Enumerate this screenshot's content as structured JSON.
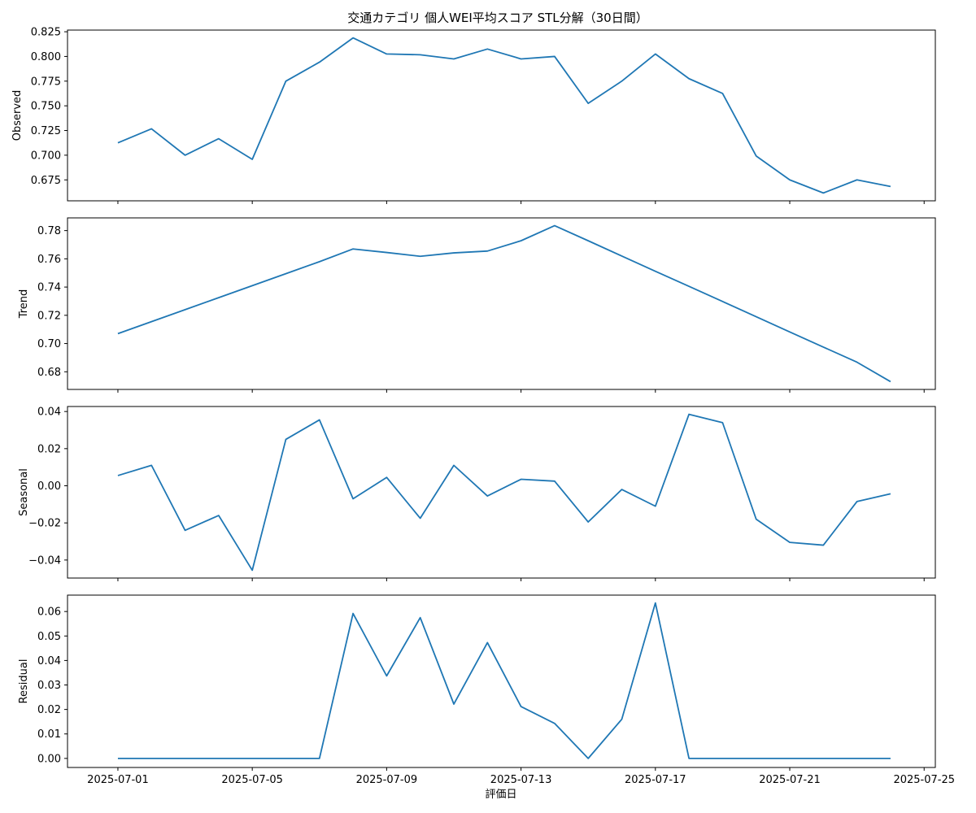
{
  "figure": {
    "title": "交通カテゴリ 個人WEI平均スコア STL分解（30日間）",
    "xlabel": "評価日",
    "line_color": "#1f77b4"
  },
  "chart_data": [
    {
      "type": "line",
      "ylabel": "Observed",
      "x": [
        "2025-07-01",
        "2025-07-02",
        "2025-07-03",
        "2025-07-04",
        "2025-07-05",
        "2025-07-06",
        "2025-07-07",
        "2025-07-08",
        "2025-07-09",
        "2025-07-10",
        "2025-07-11",
        "2025-07-12",
        "2025-07-13",
        "2025-07-14",
        "2025-07-15",
        "2025-07-16",
        "2025-07-17",
        "2025-07-18",
        "2025-07-19",
        "2025-07-20",
        "2025-07-21",
        "2025-07-22",
        "2025-07-23",
        "2025-07-24"
      ],
      "values": [
        0.7125,
        0.7267,
        0.7,
        0.7167,
        0.6958,
        0.775,
        0.7942,
        0.8188,
        0.8025,
        0.8017,
        0.7975,
        0.8075,
        0.7975,
        0.8,
        0.7525,
        0.775,
        0.8025,
        0.7775,
        0.7625,
        0.6992,
        0.675,
        0.6617,
        0.675,
        0.6683
      ],
      "ylim": [
        0.6538,
        0.8267
      ],
      "yticks": [
        0.675,
        0.7,
        0.725,
        0.75,
        0.775,
        0.8,
        0.825
      ],
      "ytick_labels": [
        "0.675",
        "0.700",
        "0.725",
        "0.750",
        "0.775",
        "0.800",
        "0.825"
      ]
    },
    {
      "type": "line",
      "ylabel": "Trend",
      "x": [
        "2025-07-01",
        "2025-07-02",
        "2025-07-03",
        "2025-07-04",
        "2025-07-05",
        "2025-07-06",
        "2025-07-07",
        "2025-07-08",
        "2025-07-09",
        "2025-07-10",
        "2025-07-11",
        "2025-07-12",
        "2025-07-13",
        "2025-07-14",
        "2025-07-15",
        "2025-07-16",
        "2025-07-17",
        "2025-07-18",
        "2025-07-19",
        "2025-07-20",
        "2025-07-21",
        "2025-07-22",
        "2025-07-23",
        "2025-07-24"
      ],
      "values": [
        0.707,
        0.7155,
        0.724,
        0.7325,
        0.741,
        0.7495,
        0.758,
        0.767,
        0.7645,
        0.7618,
        0.7642,
        0.7655,
        0.7728,
        0.7835,
        0.7728,
        0.762,
        0.7512,
        0.7405,
        0.7298,
        0.719,
        0.7082,
        0.6975,
        0.6868,
        0.673
      ],
      "ylim": [
        0.6675,
        0.789
      ],
      "yticks": [
        0.68,
        0.7,
        0.72,
        0.74,
        0.76,
        0.78
      ],
      "ytick_labels": [
        "0.68",
        "0.70",
        "0.72",
        "0.74",
        "0.76",
        "0.78"
      ]
    },
    {
      "type": "line",
      "ylabel": "Seasonal",
      "x": [
        "2025-07-01",
        "2025-07-02",
        "2025-07-03",
        "2025-07-04",
        "2025-07-05",
        "2025-07-06",
        "2025-07-07",
        "2025-07-08",
        "2025-07-09",
        "2025-07-10",
        "2025-07-11",
        "2025-07-12",
        "2025-07-13",
        "2025-07-14",
        "2025-07-15",
        "2025-07-16",
        "2025-07-17",
        "2025-07-18",
        "2025-07-19",
        "2025-07-20",
        "2025-07-21",
        "2025-07-22",
        "2025-07-23",
        "2025-07-24"
      ],
      "values": [
        0.0055,
        0.011,
        -0.024,
        -0.016,
        -0.0455,
        0.025,
        0.0355,
        -0.007,
        0.0045,
        -0.0175,
        0.011,
        -0.0055,
        0.0035,
        0.0025,
        -0.0195,
        -0.002,
        -0.011,
        0.0385,
        0.034,
        -0.018,
        -0.0305,
        -0.032,
        -0.0085,
        -0.0043
      ],
      "ylim": [
        -0.0497,
        0.0427
      ],
      "yticks": [
        -0.04,
        -0.02,
        0.0,
        0.02,
        0.04
      ],
      "ytick_labels": [
        "−0.04",
        "−0.02",
        "0.00",
        "0.02",
        "0.04"
      ]
    },
    {
      "type": "line",
      "ylabel": "Residual",
      "x": [
        "2025-07-01",
        "2025-07-02",
        "2025-07-03",
        "2025-07-04",
        "2025-07-05",
        "2025-07-06",
        "2025-07-07",
        "2025-07-08",
        "2025-07-09",
        "2025-07-10",
        "2025-07-11",
        "2025-07-12",
        "2025-07-13",
        "2025-07-14",
        "2025-07-15",
        "2025-07-16",
        "2025-07-17",
        "2025-07-18",
        "2025-07-19",
        "2025-07-20",
        "2025-07-21",
        "2025-07-22",
        "2025-07-23",
        "2025-07-24"
      ],
      "values": [
        0,
        0,
        0,
        0,
        0,
        0,
        0,
        0.0592,
        0.0337,
        0.0575,
        0.0222,
        0.0473,
        0.0212,
        0.0143,
        0.0,
        0.016,
        0.0635,
        0,
        0,
        0,
        0,
        0,
        0,
        0
      ],
      "ylim": [
        -0.0037,
        0.0667
      ],
      "yticks": [
        0.0,
        0.01,
        0.02,
        0.03,
        0.04,
        0.05,
        0.06
      ],
      "ytick_labels": [
        "0.00",
        "0.01",
        "0.02",
        "0.03",
        "0.04",
        "0.05",
        "0.06"
      ],
      "xticks": [
        "2025-07-01",
        "2025-07-05",
        "2025-07-09",
        "2025-07-13",
        "2025-07-17",
        "2025-07-21",
        "2025-07-25"
      ],
      "xtick_labels": [
        "2025-07-01",
        "2025-07-05",
        "2025-07-09",
        "2025-07-13",
        "2025-07-17",
        "2025-07-21",
        "2025-07-25"
      ]
    }
  ]
}
